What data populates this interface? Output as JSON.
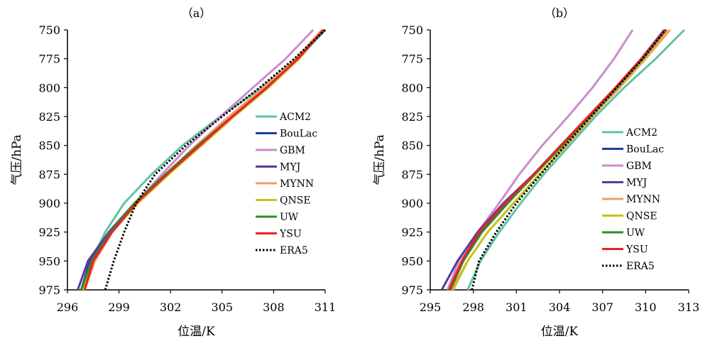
{
  "chart_data": [
    {
      "type": "line",
      "title": "（a）",
      "xlabel": "位温/K",
      "ylabel": "气压/hPa",
      "xlim": [
        296,
        311
      ],
      "ylim": [
        975,
        750
      ],
      "y_inverted": true,
      "xticks": [
        296,
        299,
        302,
        305,
        308,
        311
      ],
      "yticks": [
        750,
        775,
        800,
        825,
        850,
        875,
        900,
        925,
        950,
        975
      ],
      "grid": false,
      "legend_position": "right-middle",
      "series": [
        {
          "name": "ACM2",
          "color": "#5fc4a2",
          "dash": "solid",
          "points": [
            [
              296.8,
              975
            ],
            [
              297.4,
              950
            ],
            [
              298.2,
              925
            ],
            [
              299.3,
              900
            ],
            [
              300.9,
              875
            ],
            [
              302.7,
              850
            ],
            [
              304.9,
              825
            ],
            [
              307.3,
              800
            ],
            [
              309.3,
              775
            ],
            [
              311.0,
              750
            ]
          ]
        },
        {
          "name": "BouLac",
          "color": "#1f3f9f",
          "dash": "solid",
          "points": [
            [
              296.8,
              975
            ],
            [
              297.3,
              950
            ],
            [
              298.5,
              925
            ],
            [
              300.0,
              900
            ],
            [
              301.8,
              875
            ],
            [
              303.6,
              850
            ],
            [
              305.6,
              825
            ],
            [
              307.6,
              800
            ],
            [
              309.4,
              775
            ],
            [
              311.0,
              750
            ]
          ]
        },
        {
          "name": "GBM",
          "color": "#c88ecb",
          "dash": "solid",
          "points": [
            [
              296.9,
              975
            ],
            [
              297.5,
              950
            ],
            [
              298.6,
              925
            ],
            [
              300.0,
              900
            ],
            [
              301.5,
              875
            ],
            [
              303.1,
              850
            ],
            [
              304.9,
              825
            ],
            [
              306.8,
              800
            ],
            [
              308.7,
              775
            ],
            [
              310.3,
              750
            ]
          ]
        },
        {
          "name": "MYJ",
          "color": "#5b3a96",
          "dash": "solid",
          "points": [
            [
              296.6,
              975
            ],
            [
              297.2,
              950
            ],
            [
              298.4,
              925
            ],
            [
              299.9,
              900
            ],
            [
              301.7,
              875
            ],
            [
              303.6,
              850
            ],
            [
              305.6,
              825
            ],
            [
              307.6,
              800
            ],
            [
              309.4,
              775
            ],
            [
              310.9,
              750
            ]
          ]
        },
        {
          "name": "MYNN",
          "color": "#f29a70",
          "dash": "solid",
          "points": [
            [
              297.0,
              975
            ],
            [
              297.6,
              950
            ],
            [
              298.6,
              925
            ],
            [
              300.0,
              900
            ],
            [
              301.7,
              875
            ],
            [
              303.5,
              850
            ],
            [
              305.4,
              825
            ],
            [
              307.4,
              800
            ],
            [
              309.3,
              775
            ],
            [
              310.8,
              750
            ]
          ]
        },
        {
          "name": "QNSE",
          "color": "#c8c21a",
          "dash": "solid",
          "points": [
            [
              296.9,
              975
            ],
            [
              297.5,
              950
            ],
            [
              298.6,
              925
            ],
            [
              300.1,
              900
            ],
            [
              301.9,
              875
            ],
            [
              303.8,
              850
            ],
            [
              305.7,
              825
            ],
            [
              307.7,
              800
            ],
            [
              309.5,
              775
            ],
            [
              310.9,
              750
            ]
          ]
        },
        {
          "name": "UW",
          "color": "#2f8a2f",
          "dash": "solid",
          "points": [
            [
              296.8,
              975
            ],
            [
              297.4,
              950
            ],
            [
              298.5,
              925
            ],
            [
              299.9,
              900
            ],
            [
              301.7,
              875
            ],
            [
              303.6,
              850
            ],
            [
              305.6,
              825
            ],
            [
              307.6,
              800
            ],
            [
              309.4,
              775
            ],
            [
              311.0,
              750
            ]
          ]
        },
        {
          "name": "YSU",
          "color": "#e8202a",
          "dash": "solid",
          "points": [
            [
              297.0,
              975
            ],
            [
              297.5,
              950
            ],
            [
              298.6,
              925
            ],
            [
              300.0,
              900
            ],
            [
              301.8,
              875
            ],
            [
              303.7,
              850
            ],
            [
              305.6,
              825
            ],
            [
              307.6,
              800
            ],
            [
              309.4,
              775
            ],
            [
              310.9,
              750
            ]
          ]
        },
        {
          "name": "ERA5",
          "color": "#000000",
          "dash": "dotted",
          "points": [
            [
              298.2,
              975
            ],
            [
              298.7,
              950
            ],
            [
              299.3,
              925
            ],
            [
              300.0,
              900
            ],
            [
              301.1,
              875
            ],
            [
              302.9,
              850
            ],
            [
              305.0,
              825
            ],
            [
              307.2,
              800
            ],
            [
              309.2,
              775
            ],
            [
              311.0,
              750
            ]
          ]
        }
      ]
    },
    {
      "type": "line",
      "title": "（b）",
      "xlabel": "位温/K",
      "ylabel": "气压/hPa",
      "xlim": [
        295,
        313
      ],
      "ylim": [
        975,
        750
      ],
      "y_inverted": true,
      "xticks": [
        295,
        298,
        301,
        304,
        307,
        310,
        313
      ],
      "yticks": [
        750,
        775,
        800,
        825,
        850,
        875,
        900,
        925,
        950,
        975
      ],
      "grid": false,
      "legend_position": "right-middle",
      "series": [
        {
          "name": "ACM2",
          "color": "#5fc4a2",
          "dash": "solid",
          "points": [
            [
              297.6,
              975
            ],
            [
              298.5,
              950
            ],
            [
              299.8,
              925
            ],
            [
              301.3,
              900
            ],
            [
              302.9,
              875
            ],
            [
              304.7,
              850
            ],
            [
              306.5,
              825
            ],
            [
              308.5,
              800
            ],
            [
              310.7,
              775
            ],
            [
              312.7,
              750
            ]
          ]
        },
        {
          "name": "BouLac",
          "color": "#1f3f9f",
          "dash": "solid",
          "points": [
            [
              296.4,
              975
            ],
            [
              297.3,
              950
            ],
            [
              298.5,
              925
            ],
            [
              300.3,
              900
            ],
            [
              302.3,
              875
            ],
            [
              304.2,
              850
            ],
            [
              306.1,
              825
            ],
            [
              307.9,
              800
            ],
            [
              309.7,
              775
            ],
            [
              311.3,
              750
            ]
          ]
        },
        {
          "name": "GBM",
          "color": "#c88ecb",
          "dash": "solid",
          "points": [
            [
              296.2,
              975
            ],
            [
              297.0,
              950
            ],
            [
              298.3,
              925
            ],
            [
              299.8,
              900
            ],
            [
              301.2,
              875
            ],
            [
              302.8,
              850
            ],
            [
              304.6,
              825
            ],
            [
              306.3,
              800
            ],
            [
              307.8,
              775
            ],
            [
              309.1,
              750
            ]
          ]
        },
        {
          "name": "MYJ",
          "color": "#5b3a96",
          "dash": "solid",
          "points": [
            [
              295.8,
              975
            ],
            [
              296.9,
              950
            ],
            [
              298.3,
              925
            ],
            [
              300.1,
              900
            ],
            [
              302.2,
              875
            ],
            [
              304.1,
              850
            ],
            [
              306.0,
              825
            ],
            [
              307.9,
              800
            ],
            [
              309.7,
              775
            ],
            [
              311.3,
              750
            ]
          ]
        },
        {
          "name": "MYNN",
          "color": "#f29a70",
          "dash": "solid",
          "points": [
            [
              296.5,
              975
            ],
            [
              297.6,
              950
            ],
            [
              299.0,
              925
            ],
            [
              300.8,
              900
            ],
            [
              302.6,
              875
            ],
            [
              304.5,
              850
            ],
            [
              306.3,
              825
            ],
            [
              308.2,
              800
            ],
            [
              310.0,
              775
            ],
            [
              311.7,
              750
            ]
          ]
        },
        {
          "name": "QNSE",
          "color": "#c8c21a",
          "dash": "solid",
          "points": [
            [
              296.6,
              975
            ],
            [
              297.6,
              950
            ],
            [
              299.0,
              925
            ],
            [
              300.8,
              900
            ],
            [
              302.6,
              875
            ],
            [
              304.4,
              850
            ],
            [
              306.2,
              825
            ],
            [
              308.1,
              800
            ],
            [
              309.9,
              775
            ],
            [
              311.5,
              750
            ]
          ]
        },
        {
          "name": "UW",
          "color": "#2f8a2f",
          "dash": "solid",
          "points": [
            [
              296.4,
              975
            ],
            [
              297.3,
              950
            ],
            [
              298.6,
              925
            ],
            [
              300.4,
              900
            ],
            [
              302.3,
              875
            ],
            [
              304.2,
              850
            ],
            [
              306.1,
              825
            ],
            [
              308.0,
              800
            ],
            [
              309.8,
              775
            ],
            [
              311.4,
              750
            ]
          ]
        },
        {
          "name": "YSU",
          "color": "#e8202a",
          "dash": "solid",
          "points": [
            [
              296.3,
              975
            ],
            [
              297.2,
              950
            ],
            [
              298.4,
              925
            ],
            [
              300.2,
              900
            ],
            [
              302.2,
              875
            ],
            [
              304.1,
              850
            ],
            [
              306.0,
              825
            ],
            [
              307.9,
              800
            ],
            [
              309.7,
              775
            ],
            [
              311.4,
              750
            ]
          ]
        },
        {
          "name": "ERA5",
          "color": "#000000",
          "dash": "dotted",
          "points": [
            [
              297.9,
              975
            ],
            [
              298.4,
              950
            ],
            [
              299.6,
              925
            ],
            [
              301.0,
              900
            ],
            [
              302.7,
              875
            ],
            [
              304.4,
              850
            ],
            [
              306.2,
              825
            ],
            [
              308.0,
              800
            ],
            [
              309.8,
              775
            ],
            [
              311.4,
              750
            ]
          ]
        }
      ]
    }
  ]
}
